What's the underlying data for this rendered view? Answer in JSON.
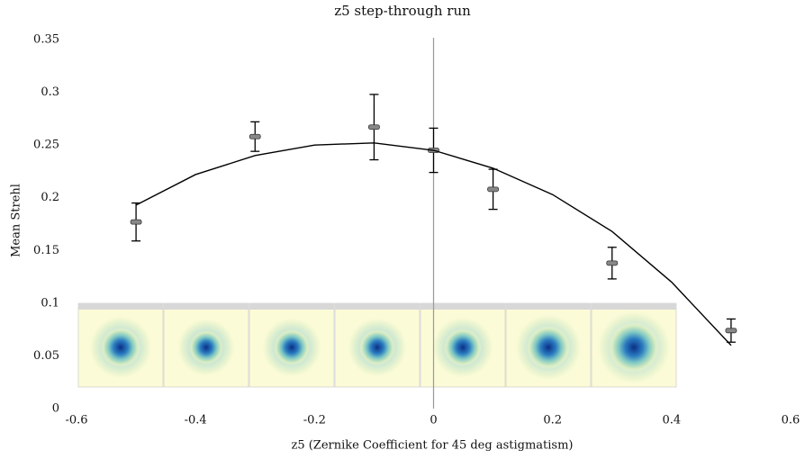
{
  "chart_data": {
    "type": "scatter",
    "title": "z5 step-through run",
    "x_label": "z5 (Zernike Coefficient for 45 deg astigmatism)",
    "y_label": "Mean Strehl",
    "xlim": [
      -0.6,
      0.6
    ],
    "ylim": [
      0,
      0.35
    ],
    "xticks": [
      -0.6,
      -0.4,
      -0.2,
      0,
      0.2,
      0.4,
      0.6
    ],
    "yticks": [
      0,
      0.05,
      0.1,
      0.15,
      0.2,
      0.25,
      0.3,
      0.35
    ],
    "vline": 0,
    "series": [
      {
        "x": [
          -0.5,
          -0.3,
          -0.1,
          0,
          0.1,
          0.3,
          0.5
        ],
        "values": [
          0.177,
          0.258,
          0.267,
          0.245,
          0.208,
          0.138,
          0.074
        ],
        "errors": [
          0.018,
          0.014,
          0.031,
          0.021,
          0.019,
          0.015,
          0.011
        ],
        "color": "#888888"
      },
      {
        "type": "line",
        "x": [
          -0.5,
          -0.4,
          -0.3,
          -0.2,
          -0.1,
          0,
          0.1,
          0.2,
          0.3,
          0.4,
          0.5
        ],
        "values": [
          0.193,
          0.222,
          0.24,
          0.25,
          0.252,
          0.245,
          0.228,
          0.203,
          0.168,
          0.12,
          0.06
        ],
        "color": "#000000"
      }
    ]
  }
}
